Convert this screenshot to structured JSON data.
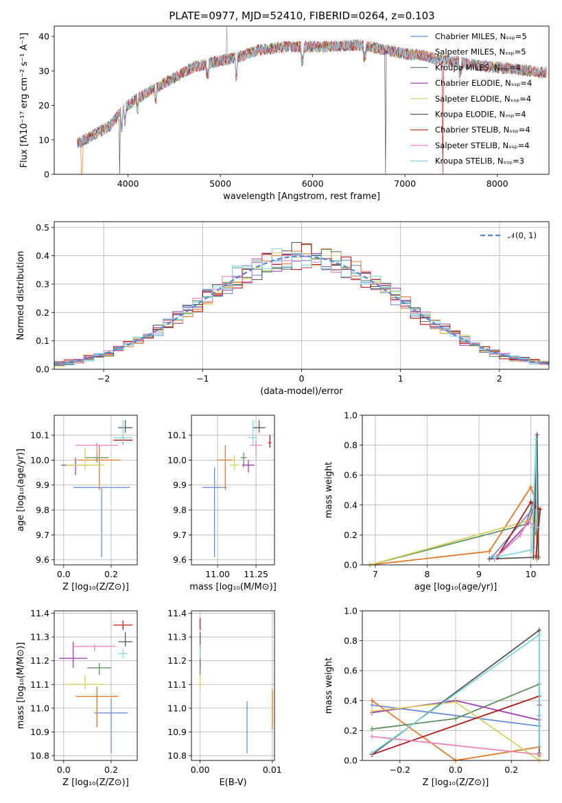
{
  "colors": [
    "#6a8fd8",
    "#e07a2a",
    "#5f8f5f",
    "#a040b0",
    "#d4d060",
    "#555555",
    "#b01818",
    "#e884b8",
    "#7fd8e0",
    "#9d9d9d"
  ],
  "chart_data": [
    {
      "type": "line",
      "title": "PLATE=0977, MJD=52410, FIBERID=0264, z=0.103",
      "xlabel": "wavelength [Angstrom, rest frame]",
      "ylabel": "Flux [fλ10⁻¹⁷ erg cm⁻² s⁻¹ A⁻¹]",
      "xlim": [
        3200,
        8560
      ],
      "ylim": [
        0,
        43
      ],
      "xticks": [
        4000,
        5000,
        6000,
        7000,
        8000
      ],
      "yticks": [
        0,
        10,
        20,
        30,
        40
      ],
      "grid": false,
      "legend": "upper right",
      "continuum": [
        [
          3450,
          9
        ],
        [
          3600,
          11
        ],
        [
          3800,
          14
        ],
        [
          3950,
          19
        ],
        [
          4100,
          22
        ],
        [
          4300,
          25
        ],
        [
          4500,
          28
        ],
        [
          4700,
          31
        ],
        [
          5000,
          33
        ],
        [
          5200,
          34
        ],
        [
          5400,
          36
        ],
        [
          5700,
          37
        ],
        [
          6000,
          37
        ],
        [
          6200,
          37
        ],
        [
          6500,
          37.5
        ],
        [
          6700,
          36.5
        ],
        [
          7000,
          35
        ],
        [
          7200,
          34.5
        ],
        [
          7400,
          33
        ],
        [
          7600,
          32.5
        ],
        [
          7800,
          31.5
        ],
        [
          8000,
          31
        ],
        [
          8200,
          30.5
        ],
        [
          8500,
          29.5
        ]
      ],
      "series": [
        {
          "name": "Chabrier MILES, Nₛₛₚ=5"
        },
        {
          "name": "Salpeter MILES, Nₛₛₚ=5"
        },
        {
          "name": "Kroupa MILES, Nₛₛₚ=4"
        },
        {
          "name": "Chabrier ELODIE, Nₛₛₚ=4"
        },
        {
          "name": "Salpeter ELODIE, Nₛₛₚ=4"
        },
        {
          "name": "Kroupa ELODIE, Nₛₛₚ=4"
        },
        {
          "name": "Chabrier STELIB, Nₛₛₚ=4"
        },
        {
          "name": "Salpeter STELIB, Nₛₛₚ=4"
        },
        {
          "name": "Kroupa STELIB, Nₛₛₚ=3"
        }
      ]
    },
    {
      "type": "histogram",
      "xlabel": "(data-model)/error",
      "ylabel": "Normed distribution",
      "xlim": [
        -2.5,
        2.5
      ],
      "ylim": [
        0,
        0.52
      ],
      "xticks": [
        -2,
        -1,
        0,
        1,
        2
      ],
      "yticks": [
        0.0,
        0.1,
        0.2,
        0.3,
        0.4,
        0.5
      ],
      "grid": true,
      "legend": "upper right",
      "reference": {
        "name": "𝒩(0, 1)",
        "mean": 0,
        "sigma": 1
      },
      "bin_width": 0.1
    },
    {
      "type": "scatter",
      "xlabel": "Z [log₁₀(Z/Z⊙)]",
      "ylabel": "age  [log₁₀(age/yr)]",
      "xlim": [
        -0.04,
        0.31
      ],
      "ylim": [
        9.58,
        10.18
      ],
      "xticks": [
        0.0,
        0.2
      ],
      "yticks": [
        9.6,
        9.7,
        9.8,
        9.9,
        10.0,
        10.1
      ],
      "grid": true,
      "points": [
        {
          "x": 0.16,
          "y": 9.89,
          "xerr": 0.12,
          "yerr_lo": 0.28,
          "yerr_hi": 0.0
        },
        {
          "x": 0.15,
          "y": 10.0,
          "xerr": 0.09,
          "yerr_lo": 0.12,
          "yerr_hi": 0.06
        },
        {
          "x": 0.14,
          "y": 10.01,
          "xerr": 0.05,
          "yerr_lo": 0.02,
          "yerr_hi": 0.02
        },
        {
          "x": 0.05,
          "y": 9.98,
          "xerr": 0.06,
          "yerr_lo": 0.04,
          "yerr_hi": 0.03
        },
        {
          "x": 0.09,
          "y": 9.98,
          "xerr": 0.08,
          "yerr_lo": 0.02,
          "yerr_hi": 0.07
        },
        {
          "x": 0.26,
          "y": 10.13,
          "xerr": 0.03,
          "yerr_lo": 0.02,
          "yerr_hi": 0.03
        },
        {
          "x": 0.25,
          "y": 10.08,
          "xerr": 0.04,
          "yerr_lo": 0.02,
          "yerr_hi": 0.02
        },
        {
          "x": 0.14,
          "y": 10.06,
          "xerr": 0.09,
          "yerr_lo": 0.05,
          "yerr_hi": 0.01
        },
        {
          "x": 0.25,
          "y": 10.09,
          "xerr": 0.04,
          "yerr_lo": 0.03,
          "yerr_hi": 0.07
        }
      ]
    },
    {
      "type": "scatter",
      "xlabel": "mass [log₁₀(M/M⊙)]",
      "ylabel": "",
      "xlim": [
        10.83,
        11.37
      ],
      "ylim": [
        9.58,
        10.18
      ],
      "xticks": [
        11.0,
        11.25
      ],
      "yticks": [
        9.6,
        9.7,
        9.8,
        9.9,
        10.0,
        10.1
      ],
      "grid": true,
      "points": [
        {
          "x": 10.98,
          "y": 9.89,
          "xerr": 0.08,
          "yerr_lo": 0.28,
          "yerr_hi": 0.08
        },
        {
          "x": 11.05,
          "y": 10.0,
          "xerr": 0.05,
          "yerr_lo": 0.12,
          "yerr_hi": 0.06
        },
        {
          "x": 11.17,
          "y": 10.01,
          "xerr": 0.02,
          "yerr_lo": 0.04,
          "yerr_hi": 0.02
        },
        {
          "x": 11.2,
          "y": 9.98,
          "xerr": 0.04,
          "yerr_lo": 0.03,
          "yerr_hi": 0.02
        },
        {
          "x": 11.11,
          "y": 9.98,
          "xerr": 0.03,
          "yerr_lo": 0.02,
          "yerr_hi": 0.04
        },
        {
          "x": 11.27,
          "y": 10.13,
          "xerr": 0.04,
          "yerr_lo": 0.02,
          "yerr_hi": 0.03
        },
        {
          "x": 11.34,
          "y": 10.07,
          "xerr": 0.01,
          "yerr_lo": 0.02,
          "yerr_hi": 0.03
        },
        {
          "x": 11.25,
          "y": 10.06,
          "xerr": 0.04,
          "yerr_lo": 0.05,
          "yerr_hi": 0.02
        },
        {
          "x": 11.23,
          "y": 10.09,
          "xerr": 0.03,
          "yerr_lo": 0.03,
          "yerr_hi": 0.07
        }
      ]
    },
    {
      "type": "line",
      "xlabel": "age  [log₁₀(age/yr)]",
      "ylabel": "mass weight",
      "xlim": [
        6.75,
        10.35
      ],
      "ylim": [
        0,
        1
      ],
      "xticks": [
        7,
        8,
        9,
        10
      ],
      "yticks": [
        0.0,
        0.2,
        0.4,
        0.6,
        0.8,
        1.0
      ],
      "grid": true,
      "series": [
        {
          "x": [
            9.25,
            10.1,
            10.15,
            10.12
          ],
          "y": [
            0.05,
            0.4,
            0.35,
            0.12
          ]
        },
        {
          "x": [
            6.9,
            9.2,
            10.0,
            10.1,
            10.12
          ],
          "y": [
            0.0,
            0.09,
            0.52,
            0.42,
            0.04
          ]
        },
        {
          "x": [
            6.9,
            9.9,
            10.05,
            10.12,
            10.1
          ],
          "y": [
            0.0,
            0.27,
            0.42,
            0.35,
            0.21
          ]
        },
        {
          "x": [
            9.3,
            9.95,
            10.1,
            10.05
          ],
          "y": [
            0.04,
            0.28,
            0.42,
            0.25
          ]
        },
        {
          "x": [
            6.9,
            10.0,
            10.12,
            10.08
          ],
          "y": [
            0.0,
            0.3,
            0.38,
            0.28
          ]
        },
        {
          "x": [
            9.2,
            10.05,
            10.12,
            10.15
          ],
          "y": [
            0.04,
            0.05,
            0.87,
            0.05
          ]
        },
        {
          "x": [
            9.35,
            10.0,
            10.12,
            10.18,
            10.1
          ],
          "y": [
            0.05,
            0.42,
            0.38,
            0.37,
            0.06
          ]
        },
        {
          "x": [
            9.3,
            9.8,
            9.95,
            10.05
          ],
          "y": [
            0.04,
            0.2,
            0.3,
            0.26
          ]
        },
        {
          "x": [
            9.3,
            10.02,
            10.1,
            10.12
          ],
          "y": [
            0.05,
            0.1,
            0.84,
            0.25
          ]
        }
      ]
    },
    {
      "type": "scatter",
      "xlabel": "Z [log₁₀(Z/Z⊙)]",
      "ylabel": "mass [log₁₀(M/M⊙)]",
      "xlim": [
        -0.04,
        0.31
      ],
      "ylim": [
        10.78,
        11.41
      ],
      "xticks": [
        0.0,
        0.2
      ],
      "yticks": [
        10.8,
        10.9,
        11.0,
        11.1,
        11.2,
        11.3,
        11.4
      ],
      "grid": true,
      "points": [
        {
          "x": 0.2,
          "y": 10.98,
          "xerr": 0.07,
          "yerr_lo": 0.17,
          "yerr_hi": 0.06
        },
        {
          "x": 0.14,
          "y": 11.05,
          "xerr": 0.09,
          "yerr_lo": 0.13,
          "yerr_hi": 0.04
        },
        {
          "x": 0.15,
          "y": 11.17,
          "xerr": 0.05,
          "yerr_lo": 0.03,
          "yerr_hi": 0.02
        },
        {
          "x": 0.04,
          "y": 11.21,
          "xerr": 0.06,
          "yerr_lo": 0.04,
          "yerr_hi": 0.07
        },
        {
          "x": 0.09,
          "y": 11.1,
          "xerr": 0.08,
          "yerr_lo": 0.02,
          "yerr_hi": 0.04
        },
        {
          "x": 0.26,
          "y": 11.28,
          "xerr": 0.03,
          "yerr_lo": 0.02,
          "yerr_hi": 0.04
        },
        {
          "x": 0.25,
          "y": 11.35,
          "xerr": 0.04,
          "yerr_lo": 0.02,
          "yerr_hi": 0.02
        },
        {
          "x": 0.13,
          "y": 11.26,
          "xerr": 0.09,
          "yerr_lo": 0.02,
          "yerr_hi": 0.01
        },
        {
          "x": 0.25,
          "y": 11.23,
          "xerr": 0.02,
          "yerr_lo": 0.02,
          "yerr_hi": 0.02
        }
      ]
    },
    {
      "type": "scatter",
      "xlabel": "E(B-V)",
      "ylabel": "",
      "xlim": [
        -0.0012,
        0.0103
      ],
      "ylim": [
        10.78,
        11.41
      ],
      "xticks": [
        0.0,
        0.01
      ],
      "xticklabels": [
        "0.00",
        "0.01"
      ],
      "yticks": [
        10.8,
        10.9,
        11.0,
        11.1,
        11.2,
        11.3,
        11.4
      ],
      "grid": true,
      "points": [
        {
          "x": 0.0065,
          "y": 10.98,
          "xerr": 0.0,
          "yerr_lo": 0.17,
          "yerr_hi": 0.05
        },
        {
          "x": 0.01,
          "y": 11.0,
          "xerr": 0.0,
          "yerr_lo": 0.09,
          "yerr_hi": 0.08
        },
        {
          "x": 0.0,
          "y": 11.17,
          "xerr": 0.0,
          "yerr_lo": 0.03,
          "yerr_hi": 0.02
        },
        {
          "x": 0.0,
          "y": 11.21,
          "xerr": 0.0,
          "yerr_lo": 0.04,
          "yerr_hi": 0.07
        },
        {
          "x": 0.0,
          "y": 11.1,
          "xerr": 0.0,
          "yerr_lo": 0.02,
          "yerr_hi": 0.04
        },
        {
          "x": 0.0,
          "y": 11.28,
          "xerr": 0.0,
          "yerr_lo": 0.02,
          "yerr_hi": 0.04
        },
        {
          "x": 0.0,
          "y": 11.35,
          "xerr": 0.0,
          "yerr_lo": 0.02,
          "yerr_hi": 0.03
        },
        {
          "x": 0.0,
          "y": 11.26,
          "xerr": 0.0,
          "yerr_lo": 0.02,
          "yerr_hi": 0.01
        },
        {
          "x": 0.0,
          "y": 11.23,
          "xerr": 0.0,
          "yerr_lo": 0.02,
          "yerr_hi": 0.02
        }
      ]
    },
    {
      "type": "line",
      "xlabel": "Z [log₁₀(Z/Z⊙)]",
      "ylabel": "mass weight",
      "xlim": [
        -0.335,
        0.335
      ],
      "ylim": [
        0,
        1
      ],
      "xticks": [
        -0.2,
        0.0,
        0.2
      ],
      "xticklabels": [
        "−0.2",
        "0.0",
        "0.2"
      ],
      "yticks": [
        0.0,
        0.2,
        0.4,
        0.6,
        0.8,
        1.0
      ],
      "grid": true,
      "series": [
        {
          "x": [
            -0.3,
            0.3,
            0.3
          ],
          "y": [
            0.37,
            0.23,
            0.3
          ]
        },
        {
          "x": [
            -0.3,
            0.0,
            0.3
          ],
          "y": [
            0.4,
            0.0,
            0.09
          ]
        },
        {
          "x": [
            -0.3,
            0.0,
            0.3,
            0.3
          ],
          "y": [
            0.21,
            0.28,
            0.51,
            0.03
          ]
        },
        {
          "x": [
            -0.3,
            0.0,
            0.3
          ],
          "y": [
            0.32,
            0.4,
            0.27
          ]
        },
        {
          "x": [
            -0.3,
            0.0,
            0.3,
            0.3
          ],
          "y": [
            0.33,
            0.39,
            0.0,
            0.28
          ]
        },
        {
          "x": [
            -0.3,
            0.3,
            0.3
          ],
          "y": [
            0.04,
            0.87,
            0.05
          ]
        },
        {
          "x": [
            -0.3,
            0.3,
            0.3
          ],
          "y": [
            0.04,
            0.43,
            0.37
          ]
        },
        {
          "x": [
            -0.3,
            0.3
          ],
          "y": [
            0.16,
            0.04
          ]
        },
        {
          "x": [
            -0.3,
            0.3,
            0.3
          ],
          "y": [
            0.05,
            0.84,
            0.1
          ]
        }
      ]
    }
  ]
}
